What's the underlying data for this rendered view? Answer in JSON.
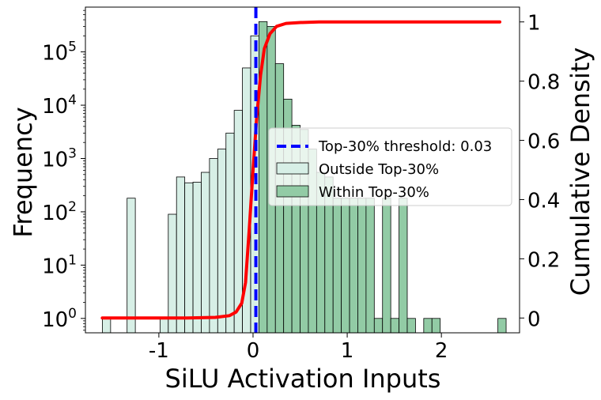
{
  "chart_data": {
    "type": "histogram",
    "xlabel": "SiLU Activation Inputs",
    "ylabel_left": "Frequency",
    "ylabel_right": "Cumulative Density",
    "y_scale_left": "log",
    "xlim": [
      -1.78,
      2.83
    ],
    "ylim_left_log10": [
      -0.27,
      5.84
    ],
    "ylim_right": [
      -0.05,
      1.05
    ],
    "x_ticks": [
      {
        "value": -1,
        "label": "-1"
      },
      {
        "value": 0,
        "label": "0"
      },
      {
        "value": 1,
        "label": "1"
      },
      {
        "value": 2,
        "label": "2"
      }
    ],
    "y_ticks_left": [
      {
        "exp": 0,
        "base": "10",
        "sup": "0"
      },
      {
        "exp": 1,
        "base": "10",
        "sup": "1"
      },
      {
        "exp": 2,
        "base": "10",
        "sup": "2"
      },
      {
        "exp": 3,
        "base": "10",
        "sup": "3"
      },
      {
        "exp": 4,
        "base": "10",
        "sup": "4"
      },
      {
        "exp": 5,
        "base": "10",
        "sup": "5"
      }
    ],
    "y_ticks_right": [
      {
        "value": 0,
        "label": "0"
      },
      {
        "value": 0.2,
        "label": "0.2"
      },
      {
        "value": 0.4,
        "label": "0.4"
      },
      {
        "value": 0.6,
        "label": "0.6"
      },
      {
        "value": 0.8,
        "label": "0.8"
      },
      {
        "value": 1,
        "label": "1"
      }
    ],
    "bin_start": -1.6,
    "bin_width": 0.0875,
    "counts": [
      1,
      0,
      0,
      180,
      0,
      0,
      0,
      1,
      90,
      450,
      350,
      360,
      550,
      1000,
      1500,
      3000,
      8000,
      50000,
      200000,
      370000,
      300000,
      60000,
      13000,
      4200,
      3500,
      1500,
      550,
      450,
      180,
      180,
      180,
      180,
      180,
      1,
      180,
      1,
      180,
      1,
      0,
      1,
      1,
      0,
      0,
      0,
      0,
      0,
      0,
      0,
      1
    ],
    "threshold": 0.03,
    "series": [
      {
        "name": "Outside Top-30%",
        "color": "#d7efe6"
      },
      {
        "name": "Within Top-30%",
        "color": "#92cba5"
      }
    ],
    "legend": {
      "threshold_label": "Top-30% threshold: 0.03",
      "outside_label": "Outside Top-30%",
      "within_label": "Within Top-30%",
      "position": "center-right"
    },
    "cdf": {
      "color": "#ff0000",
      "x": [
        -1.6,
        -0.7,
        -0.4,
        -0.25,
        -0.18,
        -0.12,
        -0.08,
        -0.04,
        0.0,
        0.04,
        0.08,
        0.12,
        0.18,
        0.25,
        0.35,
        0.5,
        0.7,
        1.0,
        2.62
      ],
      "y": [
        0.0,
        0.0,
        0.002,
        0.008,
        0.02,
        0.05,
        0.12,
        0.3,
        0.5,
        0.68,
        0.82,
        0.91,
        0.96,
        0.985,
        0.995,
        0.998,
        1.0,
        1.0,
        1.0
      ]
    },
    "threshold_color": "#0000ff"
  }
}
